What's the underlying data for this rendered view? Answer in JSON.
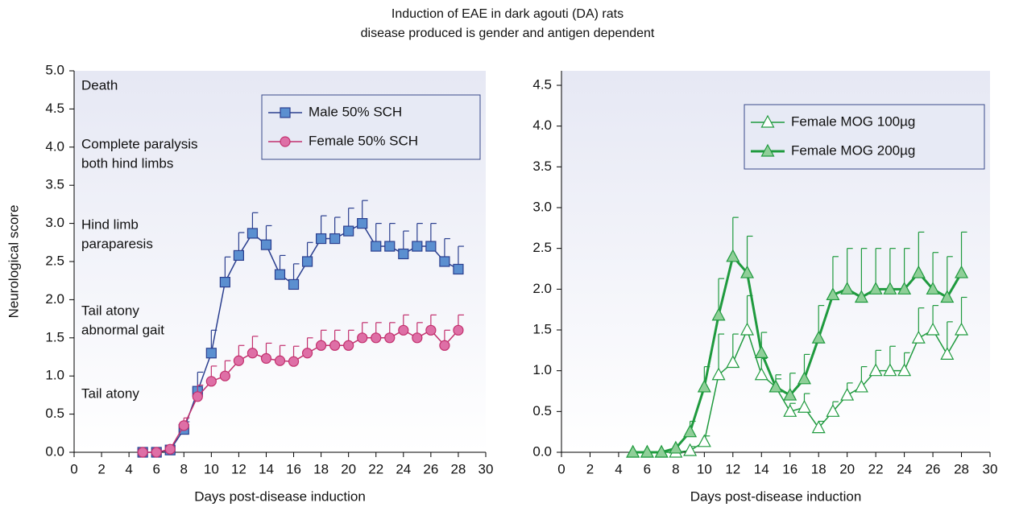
{
  "title": [
    "Induction of EAE in dark agouti (DA) rats",
    "disease produced is gender and antigen dependent"
  ],
  "chart_data": [
    {
      "type": "line",
      "x_label": "Days post-disease induction",
      "y_label": "Neurological score",
      "annotations": [
        [
          "Death"
        ],
        [
          "Complete paralysis",
          "both hind limbs"
        ],
        [
          "Hind limb",
          "paraparesis"
        ],
        [
          "Tail atony",
          "abnormal gait"
        ],
        [
          "Tail atony"
        ]
      ],
      "xlim": [
        0,
        30
      ],
      "xticks": [
        0,
        2,
        4,
        6,
        8,
        10,
        12,
        14,
        16,
        18,
        20,
        22,
        24,
        26,
        28,
        30
      ],
      "ylim": [
        0,
        5
      ],
      "yticks": [
        {
          "value": 0,
          "label": "0.0"
        },
        0.5,
        {
          "value": 1,
          "label": "1.0"
        },
        1.5,
        {
          "value": 2,
          "label": "2.0"
        },
        2.5,
        {
          "value": 3,
          "label": "3.0"
        },
        3.5,
        {
          "value": 4,
          "label": "4.0"
        },
        4.5,
        {
          "value": 5,
          "label": "5.0"
        }
      ],
      "legend": "upper right",
      "x": [
        5,
        6,
        7,
        8,
        9,
        10,
        11,
        12,
        13,
        14,
        15,
        16,
        17,
        18,
        19,
        20,
        21,
        22,
        23,
        24,
        25,
        26,
        27,
        28
      ],
      "series": [
        {
          "name": "Male 50% SCH",
          "color": "#2b3f8f",
          "marker": "square",
          "marker_fill": "#5b8fd0",
          "line_width": 1.5,
          "values": [
            0,
            0,
            0.03,
            0.3,
            0.8,
            1.3,
            2.23,
            2.58,
            2.87,
            2.72,
            2.33,
            2.2,
            2.5,
            2.8,
            2.8,
            2.9,
            3.0,
            2.7,
            2.7,
            2.6,
            2.7,
            2.7,
            2.5,
            2.4
          ],
          "errors": [
            0,
            0,
            0,
            0.1,
            0.25,
            0.3,
            0.33,
            0.3,
            0.27,
            0.25,
            0.25,
            0.27,
            0.25,
            0.3,
            0.28,
            0.3,
            0.3,
            0.3,
            0.3,
            0.3,
            0.3,
            0.3,
            0.3,
            0.3
          ]
        },
        {
          "name": "Female 50% SCH",
          "color": "#c2306e",
          "marker": "circle",
          "marker_fill": "#de6fa6",
          "line_width": 1.5,
          "values": [
            0,
            0,
            0.04,
            0.35,
            0.73,
            0.93,
            1.0,
            1.2,
            1.3,
            1.23,
            1.2,
            1.19,
            1.3,
            1.4,
            1.4,
            1.4,
            1.5,
            1.5,
            1.5,
            1.6,
            1.5,
            1.6,
            1.4,
            1.6
          ],
          "errors": [
            0,
            0,
            0,
            0.1,
            0.15,
            0.2,
            0.2,
            0.2,
            0.22,
            0.2,
            0.2,
            0.2,
            0.2,
            0.2,
            0.2,
            0.2,
            0.2,
            0.2,
            0.2,
            0.2,
            0.2,
            0.2,
            0.2,
            0.2
          ]
        }
      ]
    },
    {
      "type": "line",
      "x_label": "Days post-disease induction",
      "xlim": [
        0,
        30
      ],
      "xticks": [
        0,
        2,
        4,
        6,
        8,
        10,
        12,
        14,
        16,
        18,
        20,
        22,
        24,
        26,
        28,
        30
      ],
      "ylim": [
        0,
        4.5
      ],
      "yticks": [
        {
          "value": 0,
          "label": "0.0"
        },
        0.5,
        {
          "value": 1,
          "label": "1.0"
        },
        1.5,
        {
          "value": 2,
          "label": "2.0"
        },
        2.5,
        {
          "value": 3,
          "label": "3.0"
        },
        3.5,
        {
          "value": 4,
          "label": "4.0"
        },
        4.5
      ],
      "legend": "upper right",
      "x": [
        5,
        6,
        7,
        8,
        9,
        10,
        11,
        12,
        13,
        14,
        15,
        16,
        17,
        18,
        19,
        20,
        21,
        22,
        23,
        24,
        25,
        26,
        27,
        28
      ],
      "series": [
        {
          "name": "Female MOG 100µg",
          "color": "#1f9a3e",
          "marker": "triangle",
          "marker_fill": "#ffffff",
          "line_width": 1.5,
          "values": [
            0,
            0,
            0,
            0,
            0.02,
            0.13,
            0.95,
            1.1,
            1.5,
            0.95,
            0.8,
            0.5,
            0.55,
            0.3,
            0.5,
            0.7,
            0.8,
            1.0,
            1.0,
            1.0,
            1.4,
            1.5,
            1.2,
            1.5
          ],
          "errors": [
            0,
            0,
            0,
            0,
            0.05,
            0.07,
            0.5,
            0.35,
            0.42,
            0.2,
            0.1,
            0.1,
            0.17,
            0.08,
            0.12,
            0.15,
            0.25,
            0.25,
            0.3,
            0.22,
            0.37,
            0.3,
            0.4,
            0.4
          ]
        },
        {
          "name": "Female MOG 200µg",
          "color": "#1f9a3e",
          "marker": "triangle",
          "marker_fill": "#8fcf98",
          "line_width": 3,
          "values": [
            0,
            0,
            0,
            0.05,
            0.25,
            0.8,
            1.68,
            2.4,
            2.2,
            1.22,
            0.8,
            0.7,
            0.9,
            1.4,
            1.93,
            2.0,
            1.9,
            2.0,
            2.0,
            2.0,
            2.2,
            2.0,
            1.9,
            2.2
          ],
          "errors": [
            0,
            0,
            0,
            0,
            0.13,
            0.25,
            0.45,
            0.48,
            0.45,
            0.25,
            0.15,
            0.27,
            0.3,
            0.4,
            0.47,
            0.5,
            0.6,
            0.5,
            0.5,
            0.5,
            0.5,
            0.45,
            0.5,
            0.5
          ]
        }
      ]
    }
  ]
}
